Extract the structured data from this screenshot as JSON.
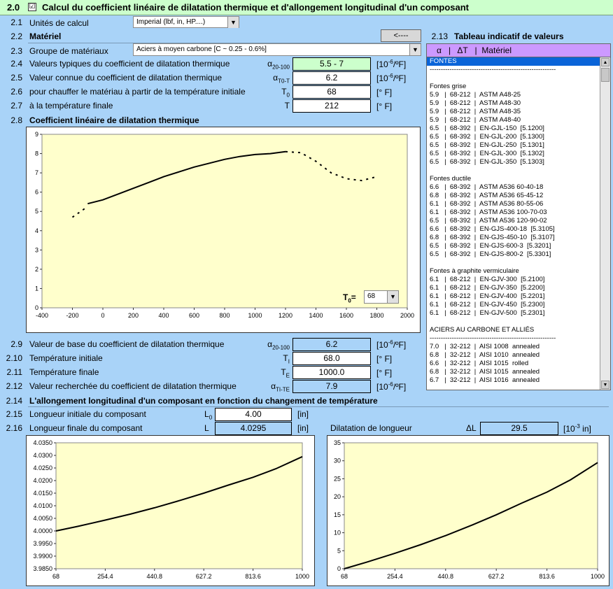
{
  "header": {
    "num": "2.0",
    "check": "☑",
    "title": "Calcul du coefficient linéaire de dilatation thermique et d'allongement longitudinal d'un composant"
  },
  "units": {
    "num": "2.1",
    "label": "Unités de calcul",
    "value": "Imperial (lbf, in, HP....)"
  },
  "material": {
    "num": "2.2",
    "label": "Matériel",
    "back_button": "<----"
  },
  "group": {
    "num": "2.3",
    "label": "Groupe de matériaux",
    "value": "Aciers à moyen carbone   [C ~ 0.25 - 0.6%]"
  },
  "rows_top": [
    {
      "num": "2.4",
      "label": "Valeurs typiques du coefficient de dilatation thermique",
      "sym": "α",
      "sub": "20-100",
      "value": "5.5 - 7",
      "unit": "[10",
      "usup": "-6",
      "uend": "/ºF]",
      "style": "green"
    },
    {
      "num": "2.5",
      "label": "Valeur connue du coefficient de dilatation thermique",
      "sym": "α",
      "sub": "T0-T",
      "value": "6.2",
      "unit": "[10",
      "usup": "-6",
      "uend": "/ºF]",
      "style": "white"
    },
    {
      "num": "2.6",
      "label": "pour chauffer le matériau à partir de la température initiale",
      "sym": "T",
      "sub": "0",
      "value": "68",
      "unit": "[° F]",
      "usup": "",
      "uend": "",
      "style": "white"
    },
    {
      "num": "2.7",
      "label": "à la température finale",
      "sym": "T",
      "sub": "",
      "value": "212",
      "unit": "[° F]",
      "usup": "",
      "uend": "",
      "style": "white"
    }
  ],
  "chart1_section": {
    "num": "2.8",
    "title": "Coefficient linéaire de dilatation thermique",
    "t0_label": "T",
    "t0_sub": "0",
    "t0_eq": "=",
    "t0_value": "68"
  },
  "rows_mid": [
    {
      "num": "2.9",
      "label": "Valeur de base du coefficient de dilatation thermique",
      "sym": "α",
      "sub": "20-100",
      "value": "6.2",
      "unit": "[10",
      "usup": "-6",
      "uend": "/ºF]",
      "style": "blue"
    },
    {
      "num": "2.10",
      "label": "Température initiale",
      "sym": "T",
      "sub": "I",
      "value": "68.0",
      "unit": "[° F]",
      "usup": "",
      "uend": "",
      "style": "white"
    },
    {
      "num": "2.11",
      "label": "Température finale",
      "sym": "T",
      "sub": "E",
      "value": "1000.0",
      "unit": "[° F]",
      "usup": "",
      "uend": "",
      "style": "white"
    },
    {
      "num": "2.12",
      "label": "Valeur recherchée du coefficient de dilatation thermique",
      "sym": "α",
      "sub": "TI-TE",
      "value": "7.9",
      "unit": "[10",
      "usup": "-6",
      "uend": "/ºF]",
      "style": "blue"
    }
  ],
  "elong": {
    "num": "2.14",
    "title": "L'allongement longitudinal d'un composant en fonction du changement de température",
    "init": {
      "num": "2.15",
      "label": "Longueur initiale du composant",
      "sym": "L",
      "sub": "0",
      "value": "4.00",
      "unit": "[in]"
    },
    "final": {
      "num": "2.16",
      "label": "Longueur finale du composant",
      "sym": "L",
      "sub": "",
      "value": "4.0295",
      "unit": "[in]"
    },
    "dil": {
      "label": "Dilatation de longueur",
      "sym": "ΔL",
      "value": "29.5",
      "unit": "[10",
      "usup": "-3",
      "uend": " in]"
    }
  },
  "table": {
    "num": "2.13",
    "title": "Tableau indicatif de valeurs",
    "head": "α   |   ΔT   |  Matériel",
    "items": [
      {
        "t": "FONTES",
        "sel": true
      },
      {
        "t": "---------------------------------------------------------"
      },
      {
        "t": ""
      },
      {
        "t": "Fontes grise"
      },
      {
        "t": "5.9   |  68-212  |  ASTM A48-25"
      },
      {
        "t": "5.9   |  68-212  |  ASTM A48-30"
      },
      {
        "t": "5.9   |  68-212  |  ASTM A48-35"
      },
      {
        "t": "5.9   |  68-212  |  ASTM A48-40"
      },
      {
        "t": "6.5   |  68-392  |  EN-GJL-150  [5.1200]"
      },
      {
        "t": "6.5   |  68-392  |  EN-GJL-200  [5.1300]"
      },
      {
        "t": "6.5   |  68-392  |  EN-GJL-250  [5.1301]"
      },
      {
        "t": "6.5   |  68-392  |  EN-GJL-300  [5.1302]"
      },
      {
        "t": "6.5   |  68-392  |  EN-GJL-350  [5.1303]"
      },
      {
        "t": ""
      },
      {
        "t": "Fontes ductile"
      },
      {
        "t": "6.6   |  68-392  |  ASTM A536 60-40-18"
      },
      {
        "t": "6.8   |  68-392  |  ASTM A536 65-45-12"
      },
      {
        "t": "6.1   |  68-392  |  ASTM A536 80-55-06"
      },
      {
        "t": "6.1   |  68-392  |  ASTM A536 100-70-03"
      },
      {
        "t": "6.5   |  68-392  |  ASTM A536 120-90-02"
      },
      {
        "t": "6.6   |  68-392  |  EN-GJS-400-18  [5.3105]"
      },
      {
        "t": "6.8   |  68-392  |  EN-GJS-450-10  [5.3107]"
      },
      {
        "t": "6.5   |  68-392  |  EN-GJS-600-3  [5.3201]"
      },
      {
        "t": "6.5   |  68-392  |  EN-GJS-800-2  [5.3301]"
      },
      {
        "t": ""
      },
      {
        "t": "Fontes à graphite vermiculaire"
      },
      {
        "t": "6.1   |  68-212  |  EN-GJV-300  [5.2100]"
      },
      {
        "t": "6.1   |  68-212  |  EN-GJV-350  [5.2200]"
      },
      {
        "t": "6.1   |  68-212  |  EN-GJV-400  [5.2201]"
      },
      {
        "t": "6.1   |  68-212  |  EN-GJV-450  [5.2300]"
      },
      {
        "t": "6.1   |  68-212  |  EN-GJV-500  [5.2301]"
      },
      {
        "t": ""
      },
      {
        "t": "ACIERS AU CARBONE ET ALLIÉS"
      },
      {
        "t": "---------------------------------------------------------"
      },
      {
        "t": "7.0   |  32-212  |  AISI 1008  annealed"
      },
      {
        "t": "6.8   |  32-212  |  AISI 1010  annealed"
      },
      {
        "t": "6.6   |  32-212  |  AISI 1015  rolled"
      },
      {
        "t": "6.8   |  32-212  |  AISI 1015  annealed"
      },
      {
        "t": "6.7   |  32-212  |  AISI 1016  annealed"
      }
    ]
  },
  "chart_data": [
    {
      "type": "line",
      "title": "Coefficient linéaire de dilatation thermique",
      "xlim": [
        -400,
        2000
      ],
      "ylim": [
        0,
        9
      ],
      "xticks": [
        "-400",
        "-200",
        "0",
        "200",
        "400",
        "600",
        "800",
        "1000",
        "1200",
        "1400",
        "1600",
        "1800",
        "2000"
      ],
      "yticks": [
        "0",
        "1",
        "2",
        "3",
        "4",
        "5",
        "6",
        "7",
        "8",
        "9"
      ],
      "series": [
        {
          "style": "dashed",
          "x": [
            -200,
            -100
          ],
          "y": [
            4.7,
            5.25
          ]
        },
        {
          "style": "solid",
          "x": [
            -100,
            0,
            100,
            200,
            300,
            400,
            500,
            600,
            700,
            800,
            900,
            1000,
            1100,
            1200
          ],
          "y": [
            5.4,
            5.6,
            5.9,
            6.2,
            6.5,
            6.8,
            7.05,
            7.3,
            7.5,
            7.7,
            7.85,
            7.95,
            8.0,
            8.1
          ]
        },
        {
          "style": "dashed",
          "x": [
            1200,
            1300,
            1400,
            1500,
            1600,
            1700,
            1800
          ],
          "y": [
            8.1,
            8.05,
            7.6,
            7.0,
            6.7,
            6.6,
            6.8
          ]
        }
      ]
    },
    {
      "type": "line",
      "xlim": [
        68,
        1000
      ],
      "ylim": [
        3.985,
        4.035
      ],
      "xticks": [
        "68",
        "254.4",
        "440.8",
        "627.2",
        "813.6",
        "1000"
      ],
      "yticks": [
        "3.9850",
        "3.9900",
        "3.9950",
        "4.0000",
        "4.0050",
        "4.0100",
        "4.0150",
        "4.0200",
        "4.0250",
        "4.0300",
        "4.0350"
      ],
      "series": [
        {
          "style": "solid",
          "x": [
            68,
            150,
            254.4,
            350,
            440.8,
            540,
            627.2,
            720,
            813.6,
            900,
            1000
          ],
          "y": [
            4.0,
            4.0018,
            4.0043,
            4.0067,
            4.0092,
            4.0122,
            4.015,
            4.0182,
            4.0213,
            4.0247,
            4.0295
          ]
        }
      ]
    },
    {
      "type": "line",
      "xlim": [
        68,
        1000
      ],
      "ylim": [
        0,
        35
      ],
      "xticks": [
        "68",
        "254.4",
        "440.8",
        "627.2",
        "813.6",
        "1000"
      ],
      "yticks": [
        "0",
        "5",
        "10",
        "15",
        "20",
        "25",
        "30",
        "35"
      ],
      "series": [
        {
          "style": "solid",
          "x": [
            68,
            150,
            254.4,
            350,
            440.8,
            540,
            627.2,
            720,
            813.6,
            900,
            1000
          ],
          "y": [
            0,
            1.8,
            4.3,
            6.7,
            9.2,
            12.2,
            15,
            18.2,
            21.3,
            24.7,
            29.5
          ]
        }
      ]
    }
  ]
}
